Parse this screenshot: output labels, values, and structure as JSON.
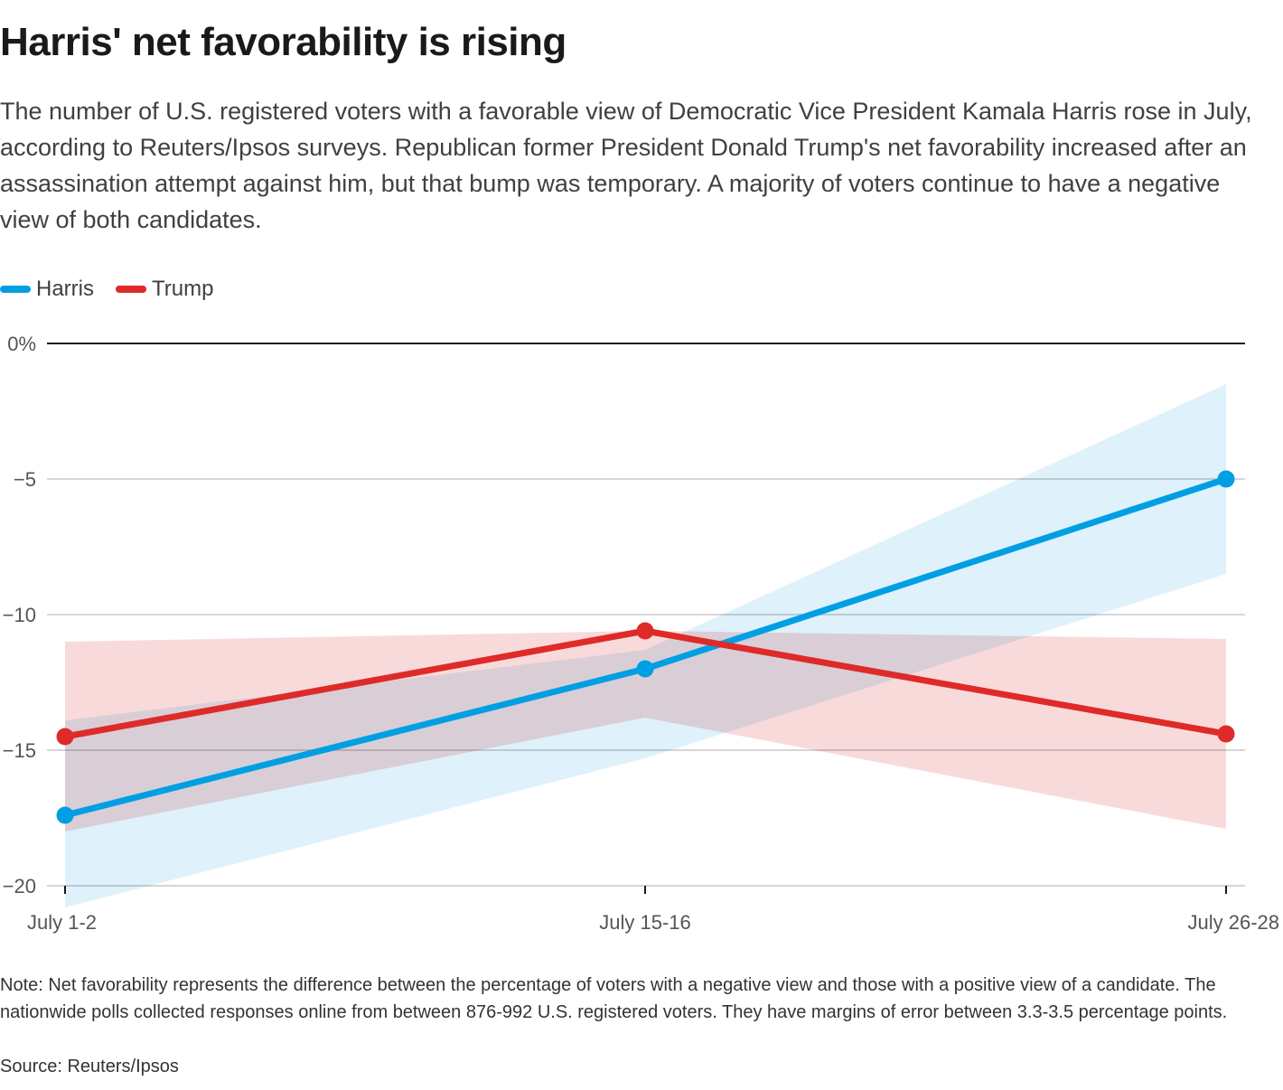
{
  "header": {
    "title": "Harris' net favorability is rising",
    "subtitle": "The number of U.S. registered voters with a favorable view of Democratic Vice President Kamala Harris rose in July, according to Reuters/Ipsos surveys. Republican former President Donald Trump's net favorability increased after an assassination attempt against him, but that bump was temporary. A majority of voters continue to have a negative view of both candidates."
  },
  "legend": [
    {
      "label": "Harris",
      "color": "#009fe3"
    },
    {
      "label": "Trump",
      "color": "#df2a2a"
    }
  ],
  "footer": {
    "note": "Note: Net favorability represents the difference between the percentage of voters with a negative view and those with a positive view of a candidate. The nationwide polls collected responses online from between 876-992 U.S. registered voters. They have margins of error between 3.3-3.5 percentage points.",
    "source": "Source: Reuters/Ipsos"
  },
  "chart_data": {
    "type": "line",
    "title": "Harris' net favorability is rising",
    "xlabel": "",
    "ylabel": "",
    "categories": [
      "July 1-2",
      "July 15-16",
      "July 26-28"
    ],
    "ylim": [
      -20,
      0
    ],
    "yticks": [
      0,
      -5,
      -10,
      -15,
      -20
    ],
    "ytick_labels": [
      "0%",
      "−5",
      "−10",
      "−15",
      "−20"
    ],
    "grid": true,
    "legend_position": "top-left",
    "series": [
      {
        "name": "Harris",
        "color": "#009fe3",
        "band_color": "#d9eefa",
        "values": [
          -17.4,
          -12.0,
          -5.0
        ],
        "lower": [
          -20.8,
          -15.3,
          -8.5
        ],
        "upper": [
          -13.9,
          -11.3,
          -1.5
        ]
      },
      {
        "name": "Trump",
        "color": "#df2a2a",
        "band_color": "#f8d4d4",
        "values": [
          -14.5,
          -10.6,
          -14.4
        ],
        "lower": [
          -18.0,
          -13.8,
          -17.9
        ],
        "upper": [
          -11.0,
          -10.6,
          -10.9
        ]
      }
    ]
  }
}
